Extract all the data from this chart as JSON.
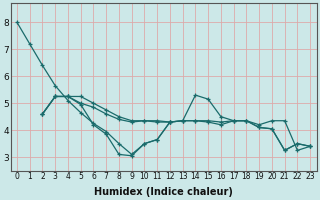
{
  "xlabel": "Humidex (Indice chaleur)",
  "bg_color": "#cce8e8",
  "grid_color": "#ddaaaa",
  "line_color": "#1a6b6b",
  "xlim": [
    -0.5,
    23.5
  ],
  "ylim": [
    2.5,
    8.7
  ],
  "yticks": [
    3,
    4,
    5,
    6,
    7,
    8
  ],
  "xticks": [
    0,
    1,
    2,
    3,
    4,
    5,
    6,
    7,
    8,
    9,
    10,
    11,
    12,
    13,
    14,
    15,
    16,
    17,
    18,
    19,
    20,
    21,
    22,
    23
  ],
  "series": [
    {
      "x": [
        0,
        1,
        2,
        3,
        4,
        5,
        6,
        7,
        8,
        9,
        10,
        11,
        12
      ],
      "y": [
        8.0,
        7.2,
        6.4,
        5.65,
        5.1,
        4.65,
        4.25,
        3.95,
        3.5,
        3.1,
        3.5,
        3.65,
        4.3
      ]
    },
    {
      "x": [
        2,
        3,
        4,
        5,
        6,
        7,
        8,
        9,
        10,
        11,
        12,
        13,
        14,
        15,
        16,
        17,
        18,
        19,
        20,
        21,
        22,
        23
      ],
      "y": [
        4.6,
        5.25,
        5.25,
        4.95,
        4.2,
        3.85,
        3.1,
        3.05,
        3.5,
        3.65,
        4.3,
        4.35,
        5.3,
        5.15,
        4.5,
        4.35,
        4.35,
        4.1,
        4.05,
        3.25,
        3.5,
        3.4
      ]
    },
    {
      "x": [
        2,
        3,
        4,
        5,
        6,
        7,
        8,
        9,
        10,
        11,
        12,
        13,
        14,
        15,
        16,
        17,
        18,
        19,
        20,
        21,
        22,
        23
      ],
      "y": [
        4.6,
        5.25,
        5.25,
        5.0,
        4.85,
        4.6,
        4.4,
        4.3,
        4.35,
        4.3,
        4.3,
        4.35,
        4.35,
        4.3,
        4.2,
        4.35,
        4.35,
        4.2,
        4.35,
        4.35,
        3.25,
        3.4
      ]
    },
    {
      "x": [
        2,
        3,
        4,
        5,
        6,
        7,
        8,
        9,
        10,
        11,
        12,
        13,
        14,
        15,
        16,
        17,
        18,
        19,
        20,
        21,
        22,
        23
      ],
      "y": [
        4.6,
        5.25,
        5.25,
        5.25,
        5.0,
        4.75,
        4.5,
        4.35,
        4.35,
        4.35,
        4.3,
        4.35,
        4.35,
        4.35,
        4.3,
        4.35,
        4.35,
        4.1,
        4.05,
        3.25,
        3.5,
        3.4
      ]
    }
  ]
}
